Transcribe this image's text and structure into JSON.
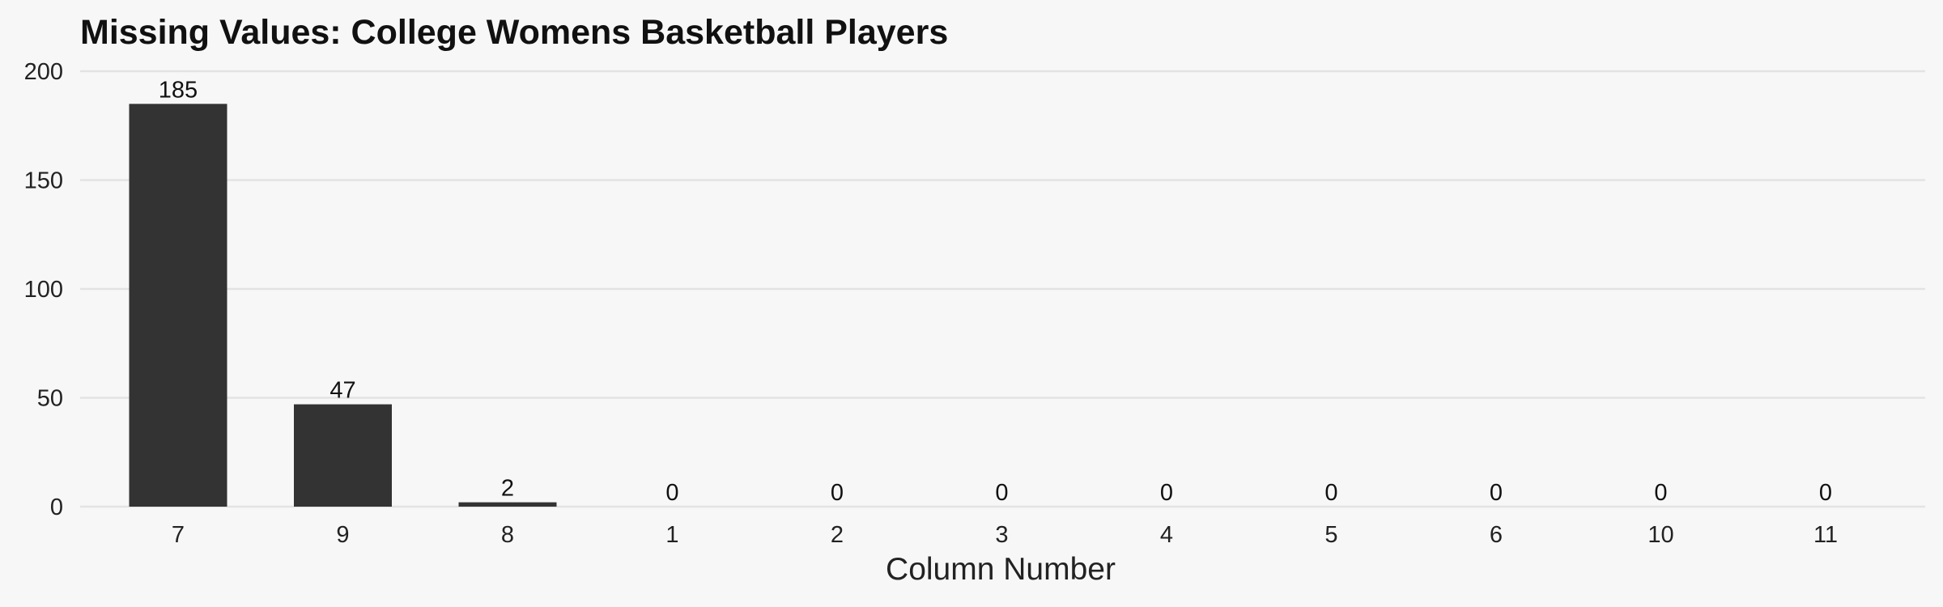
{
  "chart_data": {
    "type": "bar",
    "title": "Missing Values: College Womens Basketball Players",
    "xlabel": "Column Number",
    "ylabel": "",
    "categories": [
      "7",
      "9",
      "8",
      "1",
      "2",
      "3",
      "4",
      "5",
      "6",
      "10",
      "11"
    ],
    "values": [
      185,
      47,
      2,
      0,
      0,
      0,
      0,
      0,
      0,
      0,
      0
    ],
    "ylim": [
      0,
      200
    ],
    "yticks": [
      0,
      50,
      100,
      150,
      200
    ],
    "grid": true,
    "legend": "none",
    "colors": {
      "bar": "#333333",
      "background": "#f7f7f7",
      "grid": "#e3e3e3",
      "text": "#222222"
    }
  }
}
